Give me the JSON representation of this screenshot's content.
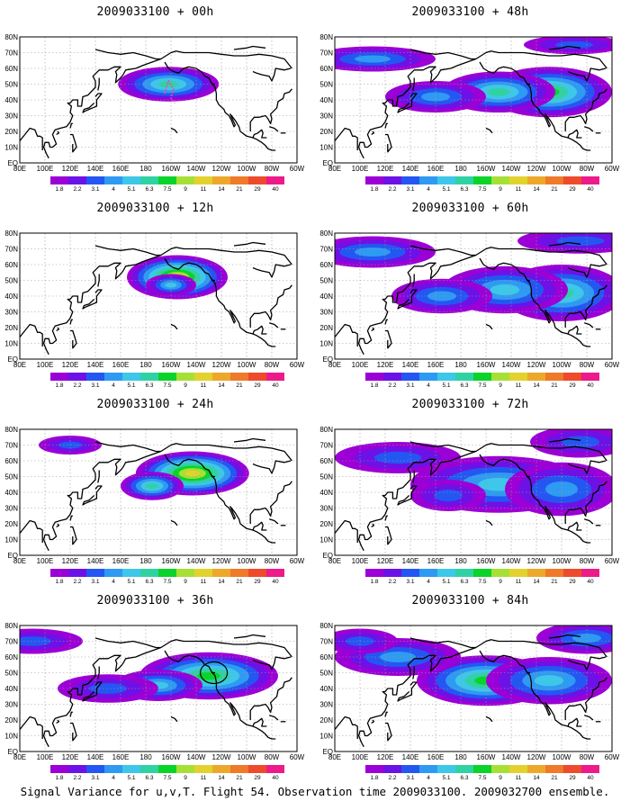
{
  "colors": [
    "#9b00d6",
    "#6c12e6",
    "#2457f2",
    "#2f9af2",
    "#3ec7e8",
    "#30d2a4",
    "#0ad42a",
    "#a6e035",
    "#e3d22e",
    "#eda82b",
    "#ee7a2a",
    "#ee4b2c",
    "#ed1a8a"
  ],
  "chart_data": [
    {
      "type": "heatmap",
      "title": "2009033100 + 00h",
      "lead_h": 0,
      "lat_ticks": [
        "80N",
        "70N",
        "60N",
        "50N",
        "40N",
        "30N",
        "20N",
        "10N",
        "EQ"
      ],
      "lon_ticks": [
        "80E",
        "100E",
        "120E",
        "140E",
        "160E",
        "180",
        "160W",
        "140W",
        "120W",
        "100W",
        "80W",
        "60W"
      ],
      "colorbar": [
        "1.8",
        "2.2",
        "3.1",
        "4",
        "5.1",
        "6.3",
        "7.5",
        "9",
        "11",
        "14",
        "21",
        "29",
        "40"
      ],
      "peak_lon": -162,
      "peak_lat": 50,
      "peak_level": 5
    },
    {
      "type": "heatmap",
      "title": "2009033100 + 48h",
      "lead_h": 48,
      "lat_ticks": [
        "80N",
        "70N",
        "60N",
        "50N",
        "40N",
        "30N",
        "20N",
        "10N",
        "EQ"
      ],
      "lon_ticks": [
        "80E",
        "100E",
        "120E",
        "140E",
        "160E",
        "180",
        "160W",
        "140W",
        "120W",
        "100W",
        "80W",
        "60W"
      ],
      "colorbar": [
        "1.8",
        "2.2",
        "3.1",
        "4",
        "5.1",
        "6.3",
        "7.5",
        "9",
        "11",
        "14",
        "21",
        "29",
        "40"
      ],
      "peak_lon": -110,
      "peak_lat": 45,
      "peak_level": 6
    },
    {
      "type": "heatmap",
      "title": "2009033100 + 12h",
      "lead_h": 12,
      "lat_ticks": [
        "80N",
        "70N",
        "60N",
        "50N",
        "40N",
        "30N",
        "20N",
        "10N",
        "EQ"
      ],
      "lon_ticks": [
        "80E",
        "100E",
        "120E",
        "140E",
        "160E",
        "180",
        "160W",
        "140W",
        "120W",
        "100W",
        "80W",
        "60W"
      ],
      "colorbar": [
        "1.8",
        "2.2",
        "3.1",
        "4",
        "5.1",
        "6.3",
        "7.5",
        "9",
        "11",
        "14",
        "21",
        "29",
        "40"
      ],
      "peak_lon": -155,
      "peak_lat": 52,
      "peak_level": 8
    },
    {
      "type": "heatmap",
      "title": "2009033100 + 60h",
      "lead_h": 60,
      "lat_ticks": [
        "80N",
        "70N",
        "60N",
        "50N",
        "40N",
        "30N",
        "20N",
        "10N",
        "EQ"
      ],
      "lon_ticks": [
        "80E",
        "100E",
        "120E",
        "140E",
        "160E",
        "180",
        "160W",
        "140W",
        "120W",
        "100W",
        "80W",
        "60W"
      ],
      "colorbar": [
        "1.8",
        "2.2",
        "3.1",
        "4",
        "5.1",
        "6.3",
        "7.5",
        "9",
        "11",
        "14",
        "21",
        "29",
        "40"
      ],
      "peak_lon": -100,
      "peak_lat": 42,
      "peak_level": 5
    },
    {
      "type": "heatmap",
      "title": "2009033100 + 24h",
      "lead_h": 24,
      "lat_ticks": [
        "80N",
        "70N",
        "60N",
        "50N",
        "40N",
        "30N",
        "20N",
        "10N",
        "EQ"
      ],
      "lon_ticks": [
        "80E",
        "100E",
        "120E",
        "140E",
        "160E",
        "180",
        "160W",
        "140W",
        "120W",
        "100W",
        "80W",
        "60W"
      ],
      "colorbar": [
        "1.8",
        "2.2",
        "3.1",
        "4",
        "5.1",
        "6.3",
        "7.5",
        "9",
        "11",
        "14",
        "21",
        "29",
        "40"
      ],
      "peak_lon": -143,
      "peak_lat": 52,
      "peak_level": 8
    },
    {
      "type": "heatmap",
      "title": "2009033100 + 72h",
      "lead_h": 72,
      "lat_ticks": [
        "80N",
        "70N",
        "60N",
        "50N",
        "40N",
        "30N",
        "20N",
        "10N",
        "EQ"
      ],
      "lon_ticks": [
        "80E",
        "100E",
        "120E",
        "140E",
        "160E",
        "180",
        "160W",
        "140W",
        "120W",
        "100W",
        "80W",
        "60W"
      ],
      "colorbar": [
        "1.8",
        "2.2",
        "3.1",
        "4",
        "5.1",
        "6.3",
        "7.5",
        "9",
        "11",
        "14",
        "21",
        "29",
        "40"
      ],
      "peak_lon": -150,
      "peak_lat": 45,
      "peak_level": 4
    },
    {
      "type": "heatmap",
      "title": "2009033100 + 36h",
      "lead_h": 36,
      "lat_ticks": [
        "80N",
        "70N",
        "60N",
        "50N",
        "40N",
        "30N",
        "20N",
        "10N",
        "EQ"
      ],
      "lon_ticks": [
        "80E",
        "100E",
        "120E",
        "140E",
        "160E",
        "180",
        "160W",
        "140W",
        "120W",
        "100W",
        "80W",
        "60W"
      ],
      "colorbar": [
        "1.8",
        "2.2",
        "3.1",
        "4",
        "5.1",
        "6.3",
        "7.5",
        "9",
        "11",
        "14",
        "21",
        "29",
        "40"
      ],
      "peak_lon": -130,
      "peak_lat": 48,
      "peak_level": 6
    },
    {
      "type": "heatmap",
      "title": "2009033100 + 84h",
      "lead_h": 84,
      "lat_ticks": [
        "80N",
        "70N",
        "60N",
        "50N",
        "40N",
        "30N",
        "20N",
        "10N",
        "EQ"
      ],
      "lon_ticks": [
        "80E",
        "100E",
        "120E",
        "140E",
        "160E",
        "180",
        "160W",
        "140W",
        "120W",
        "100W",
        "80W",
        "60W"
      ],
      "colorbar": [
        "1.8",
        "2.2",
        "3.1",
        "4",
        "5.1",
        "6.3",
        "7.5",
        "9",
        "11",
        "14",
        "21",
        "29",
        "40"
      ],
      "peak_lon": -160,
      "peak_lat": 45,
      "peak_level": 6
    }
  ],
  "footer": "Signal Variance for u,v,T. Flight 54. Observation time 2009033100. 2009032700 ensemble."
}
